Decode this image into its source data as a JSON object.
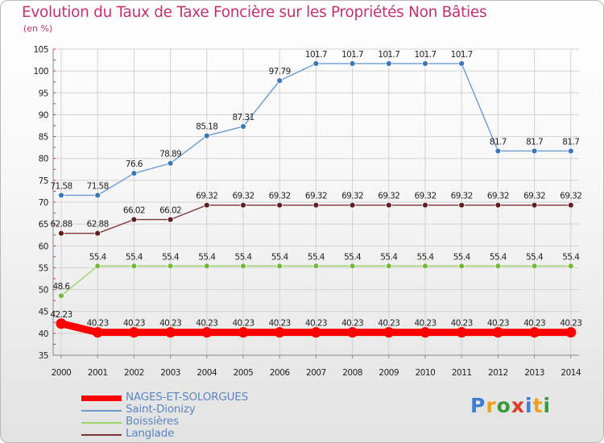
{
  "chart_data": {
    "type": "line",
    "title": "Evolution du Taux de Taxe Foncière sur les Propriétés Non Bâties",
    "ylabel": "(en %)",
    "xlabel": "",
    "ylim": [
      35,
      105
    ],
    "yticks": [
      35,
      40,
      45,
      50,
      55,
      60,
      65,
      70,
      75,
      80,
      85,
      90,
      95,
      100,
      105
    ],
    "grid": true,
    "categories": [
      "2000",
      "2001",
      "2002",
      "2003",
      "2004",
      "2005",
      "2006",
      "2007",
      "2008",
      "2009",
      "2010",
      "2011",
      "2012",
      "2013",
      "2014"
    ],
    "series": [
      {
        "name": "Saint-Dionizy",
        "color": "#6c9bd2",
        "marker_color": "#3f77b5",
        "values": [
          71.58,
          71.58,
          76.6,
          78.89,
          85.18,
          87.31,
          97.79,
          101.7,
          101.7,
          101.7,
          101.7,
          101.7,
          81.7,
          81.7,
          81.7
        ],
        "labels": [
          "71.58",
          "71.58",
          "76.6",
          "78.89",
          "85.18",
          "87.31",
          "97.79",
          "101.7",
          "101.7",
          "101.7",
          "101.7",
          "101.7",
          "81.7",
          "81.7",
          "81.7"
        ]
      },
      {
        "name": "Langlade",
        "color": "#7b3438",
        "marker_color": "#5e1f25",
        "values": [
          62.88,
          62.88,
          66.02,
          66.02,
          69.32,
          69.32,
          69.32,
          69.32,
          69.32,
          69.32,
          69.32,
          69.32,
          69.32,
          69.32,
          69.32
        ],
        "labels": [
          "62.88",
          "62.88",
          "66.02",
          "66.02",
          "69.32",
          "69.32",
          "69.32",
          "69.32",
          "69.32",
          "69.32",
          "69.32",
          "69.32",
          "69.32",
          "69.32",
          "69.32"
        ]
      },
      {
        "name": "Boissières",
        "color": "#9dd36a",
        "marker_color": "#76b83b",
        "values": [
          48.6,
          55.4,
          55.4,
          55.4,
          55.4,
          55.4,
          55.4,
          55.4,
          55.4,
          55.4,
          55.4,
          55.4,
          55.4,
          55.4,
          55.4
        ],
        "labels": [
          "48.6",
          "55.4",
          "55.4",
          "55.4",
          "55.4",
          "55.4",
          "55.4",
          "55.4",
          "55.4",
          "55.4",
          "55.4",
          "55.4",
          "55.4",
          "55.4",
          "55.4"
        ]
      },
      {
        "name": "NAGES-ET-SOLORGUES",
        "color": "#ff0000",
        "marker_color": "#ff0000",
        "values": [
          42.23,
          40.23,
          40.23,
          40.23,
          40.23,
          40.23,
          40.23,
          40.23,
          40.23,
          40.23,
          40.23,
          40.23,
          40.23,
          40.23,
          40.23
        ],
        "labels": [
          "42.23",
          "40.23",
          "40.23",
          "40.23",
          "40.23",
          "40.23",
          "40.23",
          "40.23",
          "40.23",
          "40.23",
          "40.23",
          "40.23",
          "40.23",
          "40.23",
          "40.23"
        ]
      }
    ],
    "legend": [
      "NAGES-ET-SOLORGUES",
      "Saint-Dionizy",
      "Boissières",
      "Langlade"
    ],
    "legend_placement": "bottom-left"
  },
  "logo": {
    "text": "Proxiti",
    "letters": [
      "P",
      "r",
      "o",
      "x",
      "i",
      "t",
      "i"
    ],
    "colors": [
      "#3a7fd0",
      "#f0a020",
      "#3a9a3a",
      "#e03a2a",
      "#3a7fd0",
      "#f0a020",
      "#3a9a3a"
    ]
  }
}
